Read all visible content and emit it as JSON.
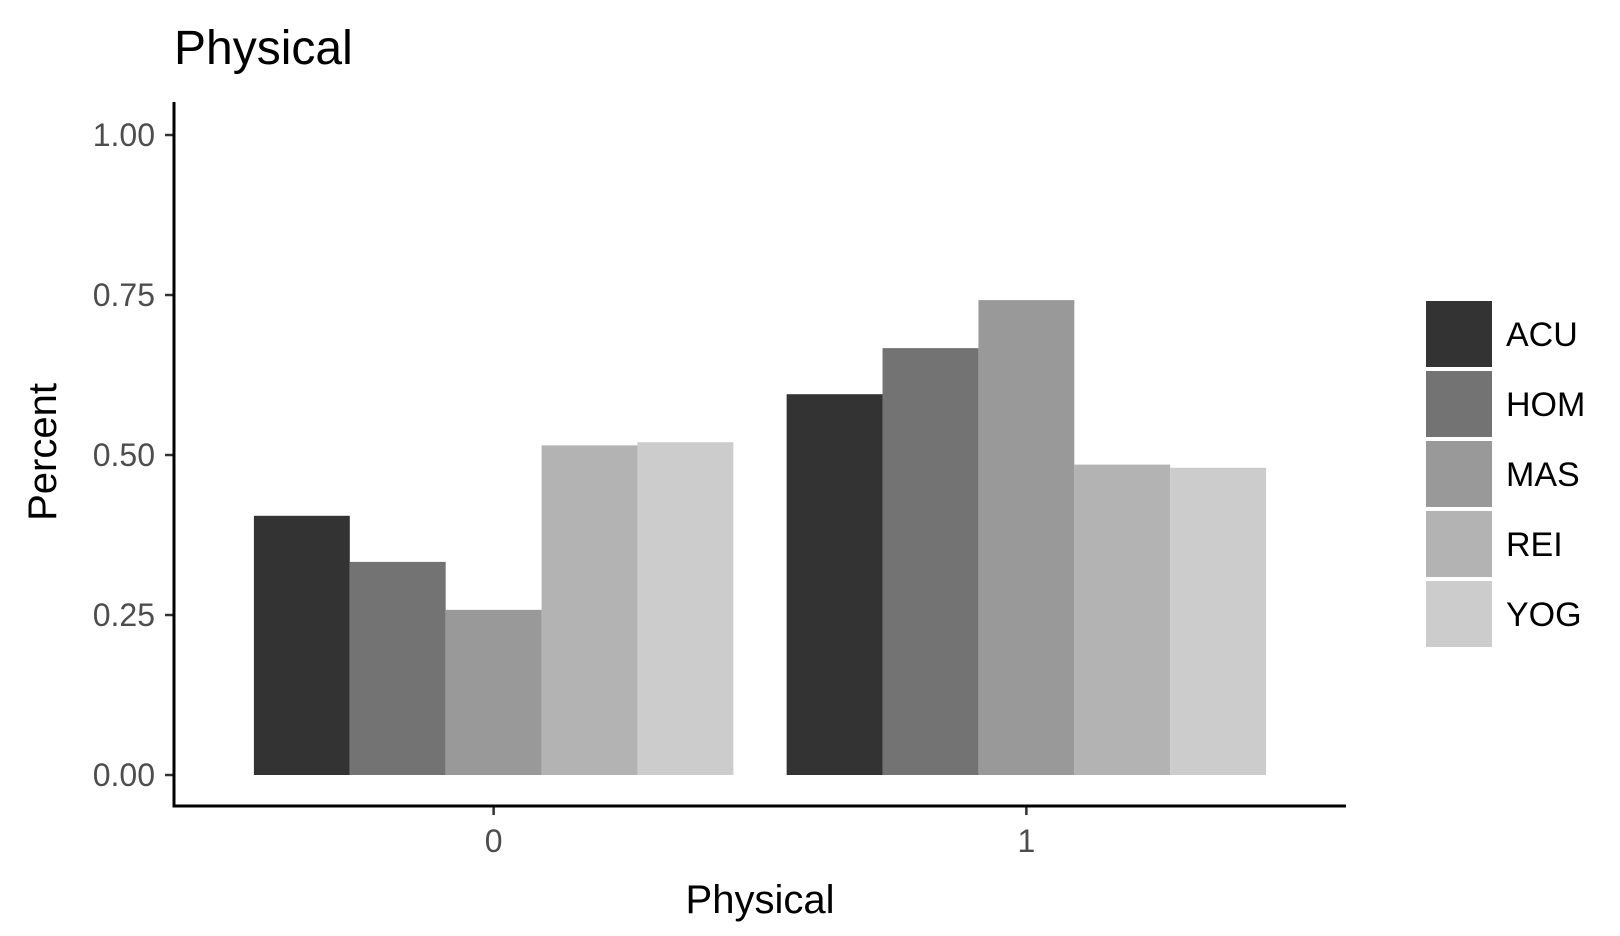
{
  "chart_data": {
    "type": "bar",
    "title": "Physical",
    "xlabel": "Physical",
    "ylabel": "Percent",
    "categories": [
      "0",
      "1"
    ],
    "ylim": [
      0,
      1
    ],
    "yticks": [
      0,
      0.25,
      0.5,
      0.75,
      1
    ],
    "ytick_labels": [
      "0.00",
      "0.25",
      "0.50",
      "0.75",
      "1.00"
    ],
    "grid": false,
    "legend_position": "right",
    "series": [
      {
        "name": "ACU",
        "color": "#333333",
        "values": [
          0.405,
          0.595
        ]
      },
      {
        "name": "HOM",
        "color": "#737373",
        "values": [
          0.333,
          0.667
        ]
      },
      {
        "name": "MAS",
        "color": "#999999",
        "values": [
          0.258,
          0.742
        ]
      },
      {
        "name": "REI",
        "color": "#b3b3b3",
        "values": [
          0.515,
          0.485
        ]
      },
      {
        "name": "YOG",
        "color": "#cccccc",
        "values": [
          0.52,
          0.48
        ]
      }
    ]
  }
}
